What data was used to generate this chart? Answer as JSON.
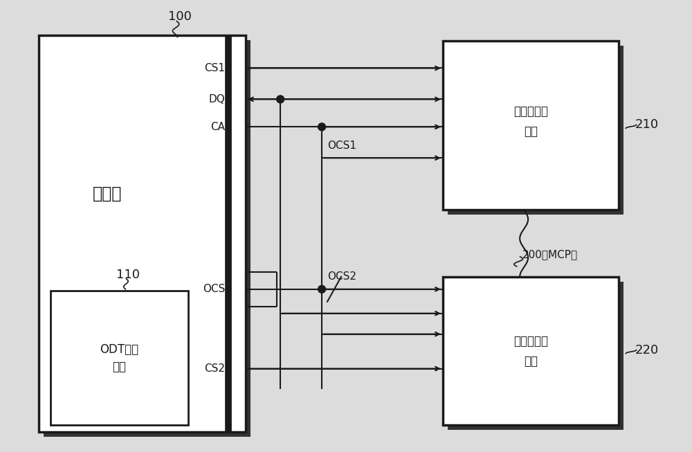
{
  "bg_color": "#dcdcdc",
  "box_color": "#ffffff",
  "line_color": "#1a1a1a",
  "shadow_color": "#333333",
  "controller_label": "控制器",
  "odt_label": "ODT控制\n单元",
  "mem1_label": "第一存储器\n裸片",
  "mem2_label": "第二存储器\n裸片",
  "label_100": "100",
  "label_110": "110",
  "label_210": "210",
  "label_220": "220",
  "label_200": "200（MCP）",
  "label_CS1": "CS1",
  "label_DQ": "DQ",
  "label_CA": "CA",
  "label_OCS": "OCS",
  "label_CS2": "CS2",
  "label_OCS1": "OCS1",
  "label_OCS2": "OCS2"
}
